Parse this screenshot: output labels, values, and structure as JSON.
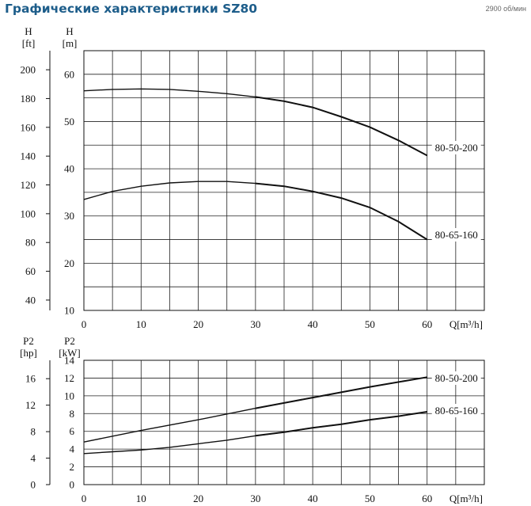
{
  "header": {
    "title": "Графические характеристики SZ80",
    "speed": "2900 об/мин"
  },
  "chart_data": [
    {
      "type": "line",
      "name": "head",
      "ylabel_left": "H\n[ft]",
      "ylabel_right": "H\n[m]",
      "xlabel": "Q[m³/h]",
      "xlim": [
        0,
        70
      ],
      "ylim": [
        10,
        65
      ],
      "xticks": [
        0,
        10,
        20,
        30,
        40,
        50,
        60
      ],
      "yticks_m": [
        10,
        20,
        30,
        40,
        50,
        60
      ],
      "yticks_ft": [
        40,
        60,
        80,
        100,
        120,
        140,
        160,
        180,
        200
      ],
      "grid": true,
      "series": [
        {
          "name": "80-50-200",
          "x": [
            0,
            5,
            10,
            15,
            20,
            25,
            30,
            35,
            40,
            45,
            50,
            55,
            60
          ],
          "y": [
            56.5,
            56.8,
            56.9,
            56.8,
            56.4,
            55.9,
            55.2,
            54.3,
            53.0,
            51.0,
            48.8,
            46.0,
            42.8
          ]
        },
        {
          "name": "80-65-160",
          "x": [
            0,
            5,
            10,
            15,
            20,
            25,
            30,
            35,
            40,
            45,
            50,
            55,
            60
          ],
          "y": [
            33.5,
            35.2,
            36.3,
            37.0,
            37.3,
            37.3,
            36.9,
            36.3,
            35.2,
            33.8,
            31.8,
            28.8,
            25.0
          ]
        }
      ]
    },
    {
      "type": "line",
      "name": "power",
      "ylabel_left": "P2\n[hp]",
      "ylabel_right": "P2\n[kW]",
      "xlabel": "Q[m³/h]",
      "xlim": [
        0,
        70
      ],
      "ylim": [
        0,
        14
      ],
      "xticks": [
        0,
        10,
        20,
        30,
        40,
        50,
        60
      ],
      "yticks_kw": [
        0,
        2,
        4,
        6,
        8,
        10,
        12,
        14
      ],
      "yticks_hp": [
        0,
        4,
        8,
        12,
        16
      ],
      "grid": true,
      "series": [
        {
          "name": "80-50-200",
          "x": [
            0,
            10,
            20,
            30,
            40,
            50,
            60
          ],
          "y": [
            4.8,
            6.1,
            7.3,
            8.6,
            9.8,
            11.0,
            12.1
          ]
        },
        {
          "name": "80-65-160",
          "x": [
            0,
            5,
            10,
            15,
            20,
            25,
            30,
            35,
            40,
            45,
            50,
            55,
            60
          ],
          "y": [
            3.5,
            3.7,
            3.9,
            4.2,
            4.6,
            5.0,
            5.5,
            5.9,
            6.4,
            6.8,
            7.3,
            7.7,
            8.2
          ]
        }
      ]
    }
  ]
}
